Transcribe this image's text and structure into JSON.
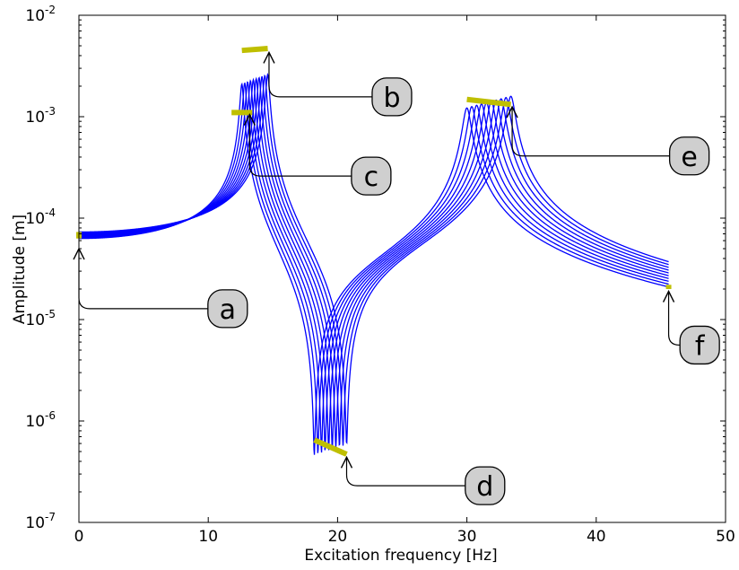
{
  "chart_data": {
    "type": "line",
    "title": "",
    "xlabel": "Excitation frequency [Hz]",
    "ylabel": "Amplitude [m]",
    "xlim": [
      0,
      50
    ],
    "ylim": [
      1e-07,
      0.01
    ],
    "yscale": "log",
    "grid": false,
    "line_color": "#0000ff",
    "highlight_color": "#bfbf00",
    "x_ticks": [
      {
        "value": 0,
        "label": "0"
      },
      {
        "value": 10,
        "label": "10"
      },
      {
        "value": 20,
        "label": "20"
      },
      {
        "value": 30,
        "label": "30"
      },
      {
        "value": 40,
        "label": "40"
      },
      {
        "value": 50,
        "label": "50"
      }
    ],
    "y_ticks": [
      {
        "value": 1e-07,
        "base": "10",
        "exp": "-7"
      },
      {
        "value": 1e-06,
        "base": "10",
        "exp": "-6"
      },
      {
        "value": 1e-05,
        "base": "10",
        "exp": "-5"
      },
      {
        "value": 0.0001,
        "base": "10",
        "exp": "-4"
      },
      {
        "value": 0.001,
        "base": "10",
        "exp": "-3"
      },
      {
        "value": 0.01,
        "base": "10",
        "exp": "-2"
      }
    ],
    "curve_family": {
      "count": 10,
      "x_start": 0,
      "x_end": 45.6,
      "resonance_1_hz": [
        12.6,
        14.6
      ],
      "antiresonance_hz": [
        18.2,
        20.7
      ],
      "resonance_2_hz": [
        30.0,
        33.4
      ]
    },
    "highlights": [
      {
        "id": "a",
        "x": [
          0,
          0
        ],
        "y": [
          6.3e-05,
          7.3e-05
        ]
      },
      {
        "id": "b",
        "x": [
          12.6,
          14.6
        ],
        "y": [
          0.0045,
          0.0047
        ]
      },
      {
        "id": "c",
        "x": [
          11.8,
          13.4
        ],
        "y": [
          0.0011,
          0.0011
        ]
      },
      {
        "id": "d",
        "x": [
          18.2,
          20.7
        ],
        "y": [
          6.5e-07,
          4.7e-07
        ]
      },
      {
        "id": "e",
        "x": [
          30.0,
          33.4
        ],
        "y": [
          0.00148,
          0.00132
        ]
      },
      {
        "id": "f",
        "x": [
          45.6,
          45.6
        ],
        "y": [
          2e-05,
          2.2e-05
        ]
      }
    ],
    "annotations": [
      {
        "label": "a",
        "arrow_x": 0,
        "arrow_y": 5e-05,
        "box_x": 11.5,
        "box_y": 1.28e-05
      },
      {
        "label": "b",
        "arrow_x": 14.7,
        "arrow_y": 0.0043,
        "box_x": 24.2,
        "box_y": 0.00157
      },
      {
        "label": "c",
        "arrow_x": 13.2,
        "arrow_y": 0.00105,
        "box_x": 22.6,
        "box_y": 0.00026
      },
      {
        "label": "d",
        "arrow_x": 20.7,
        "arrow_y": 4.4e-07,
        "box_x": 31.4,
        "box_y": 2.3e-07
      },
      {
        "label": "e",
        "arrow_x": 33.5,
        "arrow_y": 0.00125,
        "box_x": 47.2,
        "box_y": 0.00041
      },
      {
        "label": "f",
        "arrow_x": 45.6,
        "arrow_y": 1.9e-05,
        "box_x": 48.0,
        "box_y": 5.6e-06
      }
    ]
  }
}
